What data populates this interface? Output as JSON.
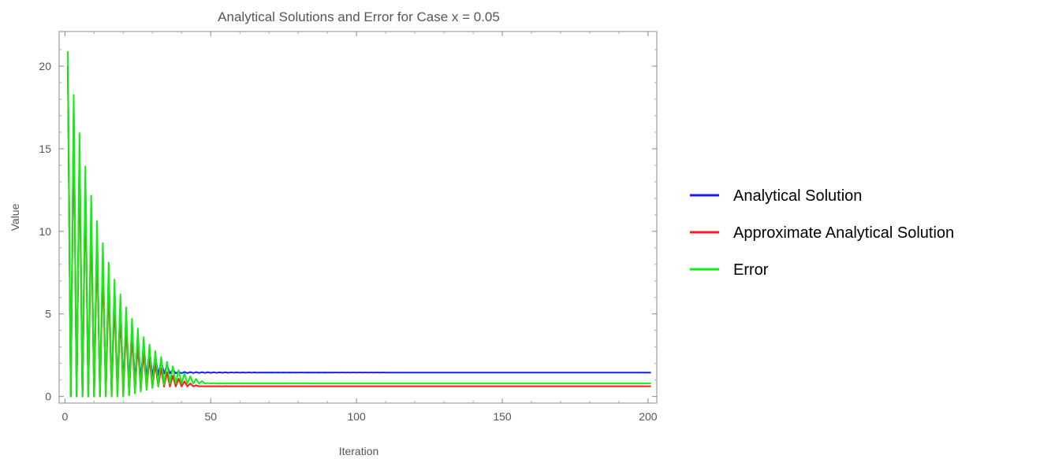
{
  "chart_data": {
    "type": "line",
    "title": "Analytical Solutions and Error for Case x = 0.05",
    "xlabel": "Iteration",
    "ylabel": "Value",
    "xlim": [
      -2,
      203
    ],
    "ylim": [
      -0.4,
      22.1
    ],
    "xticks": [
      0,
      50,
      100,
      150,
      200
    ],
    "yticks": [
      0,
      5,
      10,
      15,
      20
    ],
    "grid": false,
    "legend_position": "right",
    "series": [
      {
        "name": "Analytical Solution",
        "color": "#1a1aff",
        "oscillating": true,
        "x_start": 1,
        "x_end": 201,
        "peak_start": 20.0,
        "decay_end": 33,
        "steady_value": 1.45,
        "ripple_start": 0.6,
        "ripple_decay": 0.07
      },
      {
        "name": "Approximate Analytical Solution",
        "color": "#ff1a1a",
        "oscillating": true,
        "x_start": 1,
        "x_end": 201,
        "peak_start": 19.8,
        "decay_end": 30,
        "steady_value": 0.62,
        "ripple_start": 0.3,
        "ripple_decay": 0.08
      },
      {
        "name": "Error",
        "color": "#11ee11",
        "oscillating": true,
        "x_start": 1,
        "x_end": 201,
        "peak_start": 20.9,
        "decay_end": 34,
        "steady_value": 0.8,
        "ripple_start": 0.4,
        "ripple_decay": 0.08
      }
    ]
  }
}
